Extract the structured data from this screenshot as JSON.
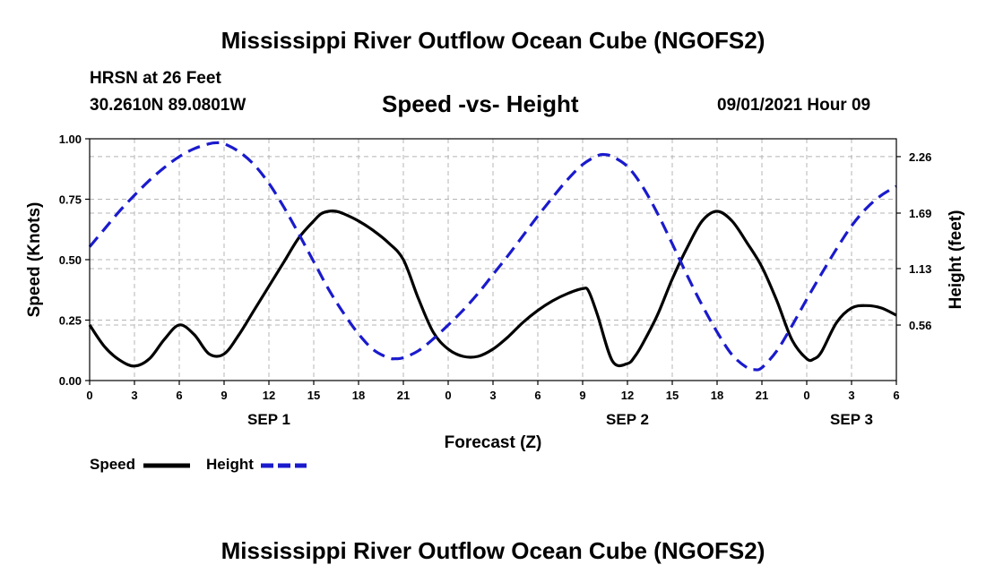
{
  "header": {
    "title": "Mississippi River Outflow Ocean Cube (NGOFS2)",
    "station": "HRSN at 26 Feet",
    "coords": "30.2610N  89.0801W",
    "subtitle": "Speed -vs- Height",
    "datetime": "09/01/2021 Hour 09"
  },
  "footer": {
    "title": "Mississippi River Outflow Ocean Cube (NGOFS2)"
  },
  "colors": {
    "speed": "#000000",
    "height": "#1a1acd",
    "grid": "#b4b4b4"
  },
  "chart_data": {
    "type": "line",
    "title": "Speed -vs- Height",
    "xlabel": "Forecast (Z)",
    "ylabel_left": "Speed (Knots)",
    "ylabel_right": "Height (feet)",
    "x_unit": "hours from 00Z Sep 1",
    "xlim": [
      0,
      54
    ],
    "ylim_left": [
      0,
      1.0
    ],
    "ylim_right": [
      0.0,
      2.44
    ],
    "x_ticks": [
      0,
      3,
      6,
      9,
      12,
      15,
      18,
      21,
      24,
      27,
      30,
      33,
      36,
      39,
      42,
      45,
      48,
      51,
      54
    ],
    "x_tick_labels": [
      "0",
      "3",
      "6",
      "9",
      "12",
      "15",
      "18",
      "21",
      "0",
      "3",
      "6",
      "9",
      "12",
      "15",
      "18",
      "21",
      "0",
      "3",
      "6"
    ],
    "day_labels": [
      {
        "x": 12,
        "label": "SEP 1"
      },
      {
        "x": 36,
        "label": "SEP 2"
      },
      {
        "x": 51,
        "label": "SEP 3"
      }
    ],
    "y_ticks_left": [
      0.0,
      0.25,
      0.5,
      0.75,
      1.0
    ],
    "y_tick_labels_left": [
      "0.00",
      "0.25",
      "0.50",
      "0.75",
      "1.00"
    ],
    "y_ticks_right": [
      0.56,
      1.13,
      1.69,
      2.26
    ],
    "y_tick_labels_right": [
      "0.56",
      "1.13",
      "1.69",
      "2.26"
    ],
    "grid": true,
    "series": [
      {
        "name": "Speed",
        "axis": "left",
        "style": "solid",
        "x": [
          0,
          1,
          2,
          3,
          4,
          5,
          6,
          7,
          8,
          9,
          10,
          11,
          12,
          13,
          14,
          15,
          15.5,
          16,
          16.5,
          17,
          18,
          19,
          20,
          21,
          22,
          23,
          24,
          25,
          26,
          27,
          28,
          29,
          30,
          31,
          32,
          33,
          33.4,
          34,
          35,
          36,
          36.5,
          37,
          38,
          39,
          40,
          41,
          42,
          43,
          44,
          45,
          46,
          47,
          48,
          48.5,
          49,
          50,
          51,
          52,
          53,
          54
        ],
        "values": [
          0.23,
          0.14,
          0.085,
          0.06,
          0.09,
          0.17,
          0.23,
          0.19,
          0.11,
          0.11,
          0.19,
          0.29,
          0.39,
          0.49,
          0.59,
          0.66,
          0.69,
          0.7,
          0.7,
          0.69,
          0.66,
          0.62,
          0.57,
          0.5,
          0.34,
          0.2,
          0.13,
          0.1,
          0.1,
          0.13,
          0.18,
          0.24,
          0.29,
          0.33,
          0.36,
          0.38,
          0.37,
          0.27,
          0.08,
          0.07,
          0.1,
          0.15,
          0.27,
          0.42,
          0.55,
          0.66,
          0.7,
          0.66,
          0.57,
          0.47,
          0.33,
          0.17,
          0.09,
          0.09,
          0.12,
          0.24,
          0.3,
          0.31,
          0.3,
          0.27
        ]
      },
      {
        "name": "Height",
        "axis": "right",
        "style": "dashed",
        "x": [
          0,
          1,
          2,
          3,
          4,
          5,
          6,
          7,
          8,
          8.5,
          9,
          10,
          11,
          12,
          13,
          14,
          15,
          16,
          17,
          18,
          19,
          20,
          20.5,
          21,
          22,
          23,
          24,
          25,
          26,
          27,
          28,
          29,
          30,
          31,
          32,
          33,
          34,
          34.5,
          35,
          36,
          37,
          38,
          39,
          40,
          41,
          42,
          43,
          44,
          44.5,
          45,
          46,
          47,
          48,
          49,
          50,
          51,
          52,
          53,
          54
        ],
        "values": [
          1.35,
          1.53,
          1.71,
          1.87,
          2.02,
          2.15,
          2.26,
          2.34,
          2.39,
          2.4,
          2.39,
          2.31,
          2.18,
          1.99,
          1.75,
          1.48,
          1.2,
          0.92,
          0.68,
          0.47,
          0.31,
          0.23,
          0.22,
          0.23,
          0.3,
          0.42,
          0.56,
          0.71,
          0.88,
          1.07,
          1.26,
          1.46,
          1.66,
          1.85,
          2.03,
          2.18,
          2.27,
          2.28,
          2.26,
          2.16,
          1.96,
          1.69,
          1.38,
          1.06,
          0.76,
          0.49,
          0.26,
          0.13,
          0.11,
          0.13,
          0.3,
          0.55,
          0.82,
          1.08,
          1.33,
          1.56,
          1.74,
          1.87,
          1.96
        ]
      }
    ],
    "legend": [
      {
        "label": "Speed",
        "style": "solid"
      },
      {
        "label": "Height",
        "style": "dashed"
      }
    ]
  }
}
